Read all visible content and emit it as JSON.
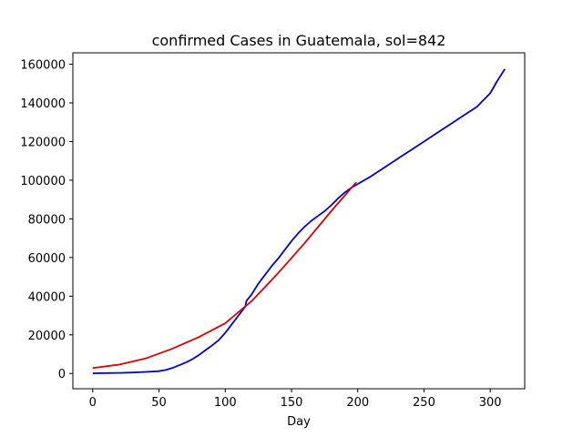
{
  "chart_data": {
    "type": "line",
    "title": "confirmed Cases in Guatemala, sol=842",
    "xlabel": "Day",
    "ylabel": "",
    "xlim": [
      -15,
      326
    ],
    "ylim": [
      -7900,
      165900
    ],
    "xticks": [
      0,
      50,
      100,
      150,
      200,
      250,
      300
    ],
    "yticks": [
      0,
      20000,
      40000,
      60000,
      80000,
      100000,
      120000,
      140000,
      160000
    ],
    "grid": false,
    "series": [
      {
        "color": "#0000cc",
        "x": [
          0,
          10,
          20,
          30,
          40,
          50,
          55,
          60,
          65,
          70,
          75,
          80,
          85,
          90,
          95,
          100,
          105,
          110,
          115,
          116,
          120,
          125,
          130,
          135,
          140,
          145,
          150,
          155,
          160,
          165,
          170,
          175,
          180,
          185,
          190,
          195,
          200,
          210,
          220,
          230,
          240,
          250,
          260,
          270,
          280,
          290,
          295,
          300,
          305,
          311
        ],
        "y": [
          100,
          200,
          300,
          500,
          800,
          1200,
          1800,
          2800,
          4200,
          5600,
          7300,
          9500,
          12000,
          14500,
          17200,
          21000,
          25500,
          30000,
          34500,
          37500,
          41000,
          46500,
          51000,
          55500,
          59500,
          64000,
          68500,
          72500,
          76000,
          79000,
          81500,
          84000,
          87000,
          90500,
          93500,
          96000,
          98000,
          102000,
          106500,
          111000,
          115500,
          120000,
          124500,
          129000,
          133500,
          138000,
          141500,
          145000,
          151000,
          157500
        ]
      },
      {
        "color": "#dd0000",
        "x": [
          0,
          20,
          40,
          60,
          80,
          100,
          120,
          140,
          160,
          180,
          199
        ],
        "y": [
          2800,
          4600,
          7800,
          12800,
          18800,
          26000,
          37500,
          52000,
          67500,
          84000,
          99000
        ]
      }
    ]
  }
}
